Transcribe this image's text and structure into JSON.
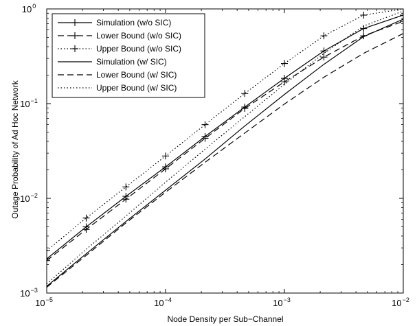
{
  "chart_data": {
    "type": "line",
    "title": "",
    "xlabel": "Node Density per Sub−Channel",
    "ylabel": "Outage Probability of Ad Hoc Network",
    "xscale": "log",
    "yscale": "log",
    "xlim": [
      1e-05,
      0.01
    ],
    "ylim": [
      0.001,
      1
    ],
    "x_ticks": [
      {
        "base": "10",
        "exp": "−5"
      },
      {
        "base": "10",
        "exp": "−4"
      },
      {
        "base": "10",
        "exp": "−3"
      },
      {
        "base": "10",
        "exp": "−2"
      }
    ],
    "y_ticks": [
      {
        "base": "10",
        "exp": "−3"
      },
      {
        "base": "10",
        "exp": "−2"
      },
      {
        "base": "10",
        "exp": "−1"
      },
      {
        "base": "10",
        "exp": "0"
      }
    ],
    "grid": false,
    "legend_position": "top-left",
    "x": [
      1e-05,
      2.15e-05,
      4.64e-05,
      0.0001,
      0.000215,
      0.000464,
      0.001,
      0.00215,
      0.00464,
      0.01
    ],
    "series": [
      {
        "name": "Simulation (w/o SIC)",
        "line": "solid",
        "marker": "+",
        "values": [
          0.0023,
          0.005,
          0.0105,
          0.0215,
          0.045,
          0.092,
          0.185,
          0.36,
          0.62,
          0.86
        ]
      },
      {
        "name": "Lower Bound (w/o SIC)",
        "line": "dashed",
        "marker": "+",
        "values": [
          0.0022,
          0.0047,
          0.0098,
          0.0205,
          0.043,
          0.089,
          0.17,
          0.31,
          0.52,
          0.74
        ]
      },
      {
        "name": "Upper Bound (w/o SIC)",
        "line": "dotted",
        "marker": "+",
        "values": [
          0.0028,
          0.0062,
          0.0132,
          0.028,
          0.06,
          0.128,
          0.265,
          0.52,
          0.86,
          1.0
        ]
      },
      {
        "name": "Simulation (w/ SIC)",
        "line": "solid",
        "marker": "none",
        "values": [
          0.00118,
          0.0026,
          0.0057,
          0.0122,
          0.026,
          0.058,
          0.125,
          0.26,
          0.51,
          0.78
        ]
      },
      {
        "name": "Lower Bound (w/ SIC)",
        "line": "dashed",
        "marker": "none",
        "values": [
          0.00115,
          0.0025,
          0.0055,
          0.0116,
          0.024,
          0.049,
          0.099,
          0.19,
          0.34,
          0.55
        ]
      },
      {
        "name": "Upper Bound (w/ SIC)",
        "line": "dotted",
        "marker": "none",
        "values": [
          0.00125,
          0.0029,
          0.0065,
          0.0148,
          0.033,
          0.073,
          0.16,
          0.34,
          0.66,
          0.95
        ]
      }
    ]
  }
}
